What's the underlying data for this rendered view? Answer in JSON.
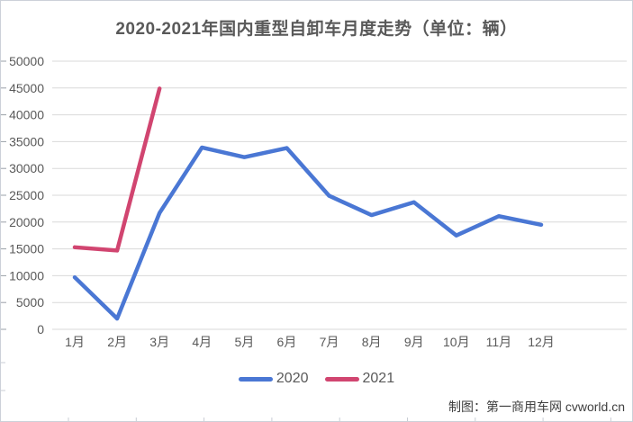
{
  "title": "2020-2021年国内重型自卸车月度走势（单位：辆）",
  "credit": "制图：第一商用车网 cvworld.cn",
  "chart_data": {
    "type": "line",
    "title": "2020-2021年国内重型自卸车月度走势（单位：辆）",
    "categories": [
      "1月",
      "2月",
      "3月",
      "4月",
      "5月",
      "6月",
      "7月",
      "8月",
      "9月",
      "10月",
      "11月",
      "12月"
    ],
    "series": [
      {
        "name": "2020",
        "color": "#4a77d4",
        "values": [
          9700,
          2000,
          21700,
          33900,
          32100,
          33800,
          24900,
          21300,
          23700,
          17500,
          21100,
          19500
        ]
      },
      {
        "name": "2021",
        "color": "#d14570",
        "values": [
          15300,
          14700,
          44900
        ]
      }
    ],
    "xlabel": "",
    "ylabel": "",
    "ylim": [
      0,
      50000
    ],
    "ytick_step": 5000,
    "grid": "horizontal",
    "legend_position": "bottom"
  },
  "colors": {
    "gridline": "#d9d9d9",
    "axis_text": "#595959",
    "tick": "#9aa0a8",
    "border_artifact": "#c8ccd4",
    "title_text": "#595959"
  }
}
